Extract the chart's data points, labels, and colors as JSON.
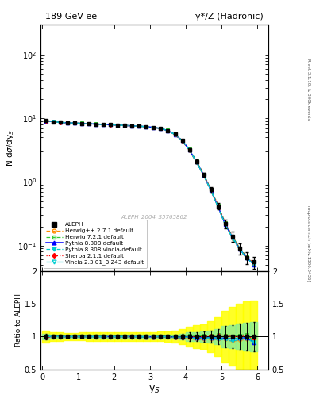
{
  "title_left": "189 GeV ee",
  "title_right": "γ*/Z (Hadronic)",
  "ylabel_main": "N dσ/dy_S",
  "ylabel_ratio": "Ratio to ALEPH",
  "xlabel": "y_S",
  "right_label_top": "Rivet 3.1.10; ≥ 300k events",
  "right_label_bot": "mcplots.cern.ch [arXiv:1306.3436]",
  "watermark": "ALEPH_2004_S5765862",
  "ylim_main": [
    0.04,
    300
  ],
  "ylim_ratio": [
    0.5,
    2.0
  ],
  "xlim": [
    -0.05,
    6.3
  ],
  "xticks": [
    0,
    1,
    2,
    3,
    4,
    5,
    6
  ],
  "data_x": [
    0.1,
    0.3,
    0.5,
    0.7,
    0.9,
    1.1,
    1.3,
    1.5,
    1.7,
    1.9,
    2.1,
    2.3,
    2.5,
    2.7,
    2.9,
    3.1,
    3.3,
    3.5,
    3.7,
    3.9,
    4.1,
    4.3,
    4.5,
    4.7,
    4.9,
    5.1,
    5.3,
    5.5,
    5.7,
    5.9
  ],
  "aleph_y": [
    9.2,
    8.8,
    8.6,
    8.5,
    8.4,
    8.3,
    8.2,
    8.1,
    8.0,
    7.9,
    7.8,
    7.7,
    7.6,
    7.5,
    7.4,
    7.2,
    6.9,
    6.4,
    5.6,
    4.5,
    3.2,
    2.1,
    1.3,
    0.75,
    0.42,
    0.22,
    0.14,
    0.09,
    0.065,
    0.055
  ],
  "aleph_yerr": [
    0.35,
    0.25,
    0.22,
    0.2,
    0.2,
    0.2,
    0.2,
    0.2,
    0.2,
    0.2,
    0.2,
    0.2,
    0.2,
    0.2,
    0.2,
    0.2,
    0.2,
    0.2,
    0.2,
    0.2,
    0.2,
    0.15,
    0.1,
    0.07,
    0.05,
    0.035,
    0.025,
    0.018,
    0.014,
    0.012
  ],
  "herwig_pp_y": [
    9.0,
    8.8,
    8.6,
    8.5,
    8.4,
    8.3,
    8.2,
    8.1,
    8.0,
    7.9,
    7.8,
    7.7,
    7.6,
    7.5,
    7.35,
    7.1,
    6.85,
    6.35,
    5.5,
    4.4,
    3.1,
    2.0,
    1.25,
    0.72,
    0.4,
    0.21,
    0.13,
    0.085,
    0.062,
    0.052
  ],
  "herwig7_y": [
    9.3,
    8.9,
    8.65,
    8.55,
    8.45,
    8.35,
    8.25,
    8.15,
    8.05,
    7.95,
    7.85,
    7.75,
    7.65,
    7.5,
    7.4,
    7.2,
    6.95,
    6.45,
    5.6,
    4.5,
    3.25,
    2.12,
    1.32,
    0.76,
    0.43,
    0.225,
    0.14,
    0.092,
    0.067,
    0.051
  ],
  "pythia_y": [
    9.1,
    8.85,
    8.6,
    8.5,
    8.4,
    8.3,
    8.2,
    8.1,
    8.0,
    7.9,
    7.8,
    7.7,
    7.6,
    7.5,
    7.38,
    7.18,
    6.9,
    6.4,
    5.55,
    4.45,
    3.2,
    2.05,
    1.28,
    0.74,
    0.41,
    0.215,
    0.135,
    0.088,
    0.064,
    0.05
  ],
  "pythia_vincia_y": [
    9.15,
    8.82,
    8.58,
    8.48,
    8.38,
    8.28,
    8.18,
    8.08,
    7.98,
    7.88,
    7.78,
    7.68,
    7.58,
    7.48,
    7.36,
    7.16,
    6.88,
    6.38,
    5.52,
    4.42,
    3.18,
    2.03,
    1.26,
    0.73,
    0.4,
    0.21,
    0.13,
    0.086,
    0.063,
    0.05
  ],
  "sherpa_y": [
    9.05,
    8.82,
    8.58,
    8.48,
    8.38,
    8.28,
    8.18,
    8.08,
    7.98,
    7.88,
    7.78,
    7.68,
    7.58,
    7.48,
    7.36,
    7.16,
    6.88,
    6.38,
    5.52,
    4.42,
    3.18,
    2.1,
    1.3,
    0.76,
    0.43,
    0.225,
    0.14,
    0.09,
    0.066,
    0.053
  ],
  "vincia_y": [
    9.2,
    8.85,
    8.6,
    8.5,
    8.4,
    8.3,
    8.2,
    8.1,
    8.0,
    7.9,
    7.8,
    7.7,
    7.6,
    7.5,
    7.37,
    7.17,
    6.89,
    6.39,
    5.53,
    4.43,
    3.19,
    2.04,
    1.27,
    0.74,
    0.41,
    0.215,
    0.135,
    0.088,
    0.064,
    0.051
  ],
  "colors": {
    "aleph": "#000000",
    "herwig_pp": "#ff8c00",
    "herwig7": "#32cd32",
    "pythia": "#0000ff",
    "pythia_vincia": "#00ced1",
    "sherpa": "#ff0000",
    "vincia": "#00ced1"
  },
  "legend_entries": [
    "ALEPH",
    "Herwig++ 2.7.1 default",
    "Herwig 7.2.1 default",
    "Pythia 8.308 default",
    "Pythia 8.308 vincia-default",
    "Sherpa 2.1.1 default",
    "Vincia 2.3.01_8.243 default"
  ]
}
